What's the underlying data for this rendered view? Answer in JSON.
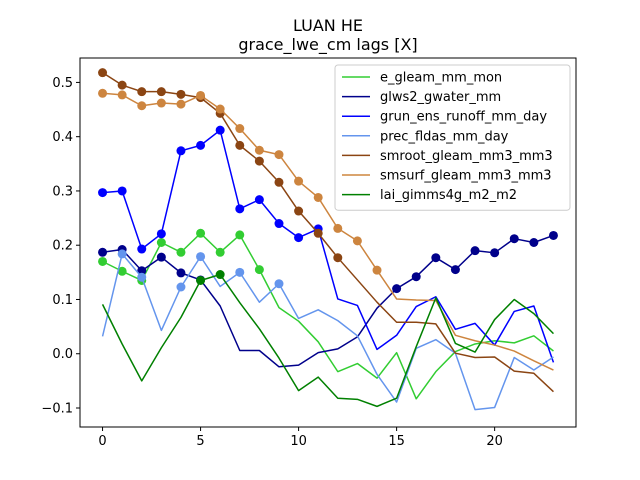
{
  "chart_data": {
    "type": "line",
    "title": "LUAN HE",
    "subtitle": "grace_lwe_cm lags [X]",
    "xlabel": "",
    "ylabel": "",
    "xlim": [
      -1.15,
      24.15
    ],
    "ylim": [
      -0.135,
      0.545
    ],
    "xticks": [
      0,
      5,
      10,
      15,
      20
    ],
    "yticks": [
      -0.1,
      0.0,
      0.1,
      0.2,
      0.3,
      0.4,
      0.5
    ],
    "ytick_labels": [
      "−0.1",
      "0.0",
      "0.1",
      "0.2",
      "0.3",
      "0.4",
      "0.5"
    ],
    "legend_position": "top-right",
    "grid": false,
    "x": [
      0,
      1,
      2,
      3,
      4,
      5,
      6,
      7,
      8,
      9,
      10,
      11,
      12,
      13,
      14,
      15,
      16,
      17,
      18,
      19,
      20,
      21,
      22,
      23
    ],
    "series": [
      {
        "name": "e_gleam_mm_mon",
        "color": "#32cd32",
        "values": [
          0.17,
          0.152,
          0.135,
          0.205,
          0.187,
          0.222,
          0.187,
          0.219,
          0.155,
          0.085,
          0.06,
          0.022,
          -0.033,
          -0.018,
          -0.045,
          0.002,
          -0.083,
          -0.033,
          0.004,
          0.018,
          0.024,
          0.02,
          0.033,
          0.005
        ],
        "markers": [
          0,
          1,
          2,
          3,
          4,
          5,
          6,
          7,
          8
        ]
      },
      {
        "name": "glws2_gwater_mm",
        "color": "#00008b",
        "values": [
          0.187,
          0.192,
          0.153,
          0.178,
          0.149,
          0.136,
          0.088,
          0.006,
          0.006,
          -0.024,
          -0.021,
          0.002,
          0.009,
          0.031,
          0.084,
          0.12,
          0.142,
          0.177,
          0.155,
          0.19,
          0.186,
          0.212,
          0.205,
          0.218
        ],
        "markers": [
          0,
          1,
          2,
          3,
          4,
          5,
          15,
          16,
          17,
          18,
          19,
          20,
          21,
          22,
          23
        ]
      },
      {
        "name": "grun_ens_runoff_mm_day",
        "color": "#0000ff",
        "values": [
          0.297,
          0.3,
          0.193,
          0.221,
          0.374,
          0.384,
          0.412,
          0.267,
          0.284,
          0.24,
          0.214,
          0.23,
          0.101,
          0.089,
          0.008,
          0.034,
          0.087,
          0.105,
          0.045,
          0.056,
          0.016,
          0.078,
          0.088,
          -0.016
        ],
        "markers": [
          0,
          1,
          2,
          3,
          4,
          5,
          6,
          7,
          8,
          9,
          10,
          11
        ]
      },
      {
        "name": "prec_fldas_mm_day",
        "color": "#6495ed",
        "values": [
          0.032,
          0.184,
          0.141,
          0.043,
          0.123,
          0.179,
          0.124,
          0.15,
          0.095,
          0.129,
          0.065,
          0.081,
          0.061,
          0.033,
          -0.038,
          -0.089,
          0.01,
          0.026,
          0.001,
          -0.103,
          -0.099,
          -0.007,
          -0.03,
          -0.006
        ],
        "markers": [
          1,
          2,
          4,
          5,
          7,
          9
        ]
      },
      {
        "name": "smroot_gleam_mm3_mm3",
        "color": "#8b4513",
        "values": [
          0.518,
          0.495,
          0.483,
          0.483,
          0.478,
          0.472,
          0.443,
          0.384,
          0.355,
          0.316,
          0.263,
          0.222,
          0.177,
          0.136,
          0.095,
          0.058,
          0.058,
          0.055,
          0.001,
          -0.007,
          -0.006,
          -0.032,
          -0.036,
          -0.07
        ],
        "markers": [
          0,
          1,
          2,
          3,
          4,
          5,
          6,
          7,
          8,
          9,
          10,
          11,
          12
        ]
      },
      {
        "name": "smsurf_gleam_mm3_mm3",
        "color": "#cd853f",
        "values": [
          0.48,
          0.477,
          0.457,
          0.462,
          0.46,
          0.476,
          0.451,
          0.415,
          0.375,
          0.367,
          0.318,
          0.288,
          0.231,
          0.208,
          0.154,
          0.101,
          0.099,
          0.098,
          0.034,
          0.024,
          0.016,
          0.005,
          -0.013,
          -0.03
        ],
        "markers": [
          0,
          1,
          2,
          3,
          4,
          5,
          6,
          7,
          8,
          9,
          10,
          11,
          12,
          13,
          14
        ]
      },
      {
        "name": "lai_gimms4g_m2_m2",
        "color": "#008000",
        "values": [
          0.091,
          0.018,
          -0.05,
          0.011,
          0.067,
          0.135,
          0.146,
          0.094,
          0.046,
          -0.008,
          -0.068,
          -0.043,
          -0.082,
          -0.084,
          -0.097,
          -0.082,
          0.013,
          0.103,
          0.019,
          0.003,
          0.063,
          0.1,
          0.074,
          0.037
        ],
        "markers": [
          5,
          6
        ]
      }
    ]
  }
}
